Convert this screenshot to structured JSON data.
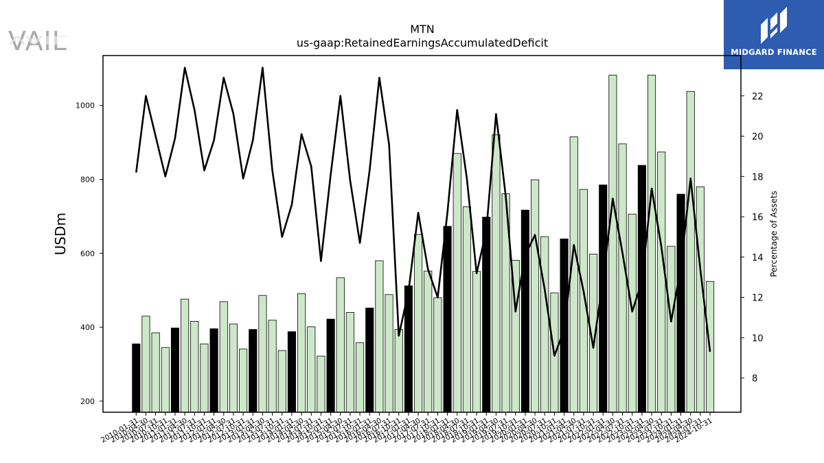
{
  "logos": {
    "left": "VAIL",
    "right": "MIDGARD FINANCE"
  },
  "chart_data": {
    "type": "bar",
    "title": "MTN",
    "subtitle": "us-gaap:RetainedEarningsAccumulatedDeficit",
    "ylabel": "USDm",
    "y2label": "Percentage of Assets",
    "ylim": [
      170,
      1135
    ],
    "y2lim": [
      6.3,
      24.0
    ],
    "yticks": [
      200,
      400,
      600,
      800,
      1000
    ],
    "y2ticks": [
      8,
      10,
      12,
      14,
      16,
      18,
      20,
      22
    ],
    "categories": [
      "2010-01-31",
      "2010-04-30",
      "2010-07-31",
      "2010-10-31",
      "2011-01-31",
      "2011-04-30",
      "2011-07-31",
      "2011-10-31",
      "2012-01-31",
      "2012-04-30",
      "2012-07-31",
      "2012-10-31",
      "2013-01-31",
      "2013-04-30",
      "2013-07-31",
      "2013-10-31",
      "2014-01-31",
      "2014-04-30",
      "2014-07-31",
      "2014-10-31",
      "2015-01-31",
      "2015-04-30",
      "2015-07-31",
      "2015-10-31",
      "2016-01-31",
      "2016-04-30",
      "2016-07-31",
      "2016-10-31",
      "2017-01-31",
      "2017-04-30",
      "2017-07-31",
      "2017-10-31",
      "2018-01-31",
      "2018-04-30",
      "2018-07-31",
      "2018-10-31",
      "2019-01-31",
      "2019-04-30",
      "2019-07-31",
      "2019-10-31",
      "2020-01-31",
      "2020-04-30",
      "2020-07-31",
      "2020-10-31",
      "2021-01-31",
      "2021-04-30",
      "2021-07-31",
      "2021-10-31",
      "2022-01-31",
      "2022-04-30",
      "2022-07-31",
      "2022-10-31",
      "2023-01-31",
      "2023-04-30",
      "2023-07-31",
      "2023-10-31",
      "2024-01-31",
      "2024-04-30",
      "2024-07-31",
      "2024-10-31"
    ],
    "series": [
      {
        "type": "bar",
        "axis": "left",
        "values": [
          355,
          430,
          385,
          345,
          398,
          476,
          416,
          355,
          396,
          469,
          409,
          341,
          394,
          486,
          419,
          337,
          388,
          491,
          401,
          322,
          422,
          534,
          440,
          358,
          452,
          580,
          488,
          394,
          512,
          651,
          552,
          480,
          673,
          870,
          726,
          551,
          698,
          921,
          761,
          581,
          717,
          799,
          645,
          493,
          639,
          915,
          773,
          598,
          785,
          1082,
          896,
          706,
          838,
          1082,
          874,
          619,
          760,
          1038,
          780,
          524
        ],
        "colors_fill": "#000000 for the -01-31 bars, #cce8c8 otherwise"
      },
      {
        "type": "line",
        "axis": "right",
        "values": [
          18.2,
          22.0,
          20.0,
          18.0,
          19.9,
          23.4,
          21.3,
          18.3,
          19.8,
          22.9,
          21.1,
          17.9,
          19.8,
          23.4,
          18.3,
          15.0,
          16.6,
          20.1,
          18.5,
          13.8,
          18.1,
          22.0,
          17.8,
          14.7,
          18.3,
          22.9,
          19.6,
          10.1,
          12.3,
          16.2,
          13.4,
          12.0,
          16.2,
          21.3,
          17.9,
          13.2,
          15.3,
          21.1,
          17.0,
          11.3,
          14.1,
          15.1,
          12.4,
          9.1,
          10.4,
          14.6,
          12.3,
          9.5,
          12.9,
          16.9,
          14.2,
          11.3,
          12.8,
          17.4,
          14.5,
          10.8,
          13.5,
          17.9,
          13.4,
          9.3
        ]
      }
    ],
    "colors": {
      "bar_highlight": "#000000",
      "bar_regular": "#cce8c8",
      "bar_edge": "#000000",
      "line": "#000000"
    },
    "grid": false,
    "legend": "none"
  }
}
